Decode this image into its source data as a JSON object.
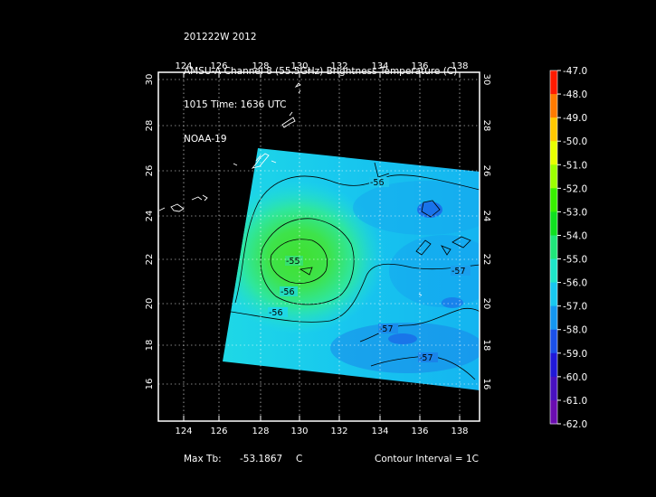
{
  "title": {
    "line1": "201222W 2012",
    "line2": "AMSU-A Channel 8 (55.5GHz) Brightness Temperature (C)",
    "line3": "1015 Time: 1636 UTC",
    "line4": "NOAA-19"
  },
  "axes": {
    "lon_ticks": [
      "124",
      "126",
      "128",
      "130",
      "132",
      "134",
      "136",
      "138"
    ],
    "lat_ticks": [
      "16",
      "18",
      "20",
      "22",
      "24",
      "26",
      "28",
      "30"
    ]
  },
  "colorbar": {
    "labels": [
      "-47.0",
      "-48.0",
      "-49.0",
      "-50.0",
      "-51.0",
      "-52.0",
      "-53.0",
      "-54.0",
      "-55.0",
      "-56.0",
      "-57.0",
      "-58.0",
      "-59.0",
      "-60.0",
      "-61.0",
      "-62.0"
    ],
    "colors": [
      "#ff1a00",
      "#ff7a00",
      "#ffc800",
      "#e8ff00",
      "#9cff00",
      "#38f000",
      "#10e020",
      "#20e67a",
      "#1ee6c8",
      "#18c8f0",
      "#1496f0",
      "#1a50e8",
      "#2018d8",
      "#4810c0",
      "#6a0cb0",
      "#8a00a0"
    ]
  },
  "contour_labels": [
    "-56",
    "-56",
    "-56",
    "-55",
    "-57",
    "-57",
    "-57"
  ],
  "footer": {
    "max_label": "Max Tb:",
    "max_value": "-53.1867",
    "max_unit": "C",
    "contour_interval": "Contour Interval = 1C"
  }
}
